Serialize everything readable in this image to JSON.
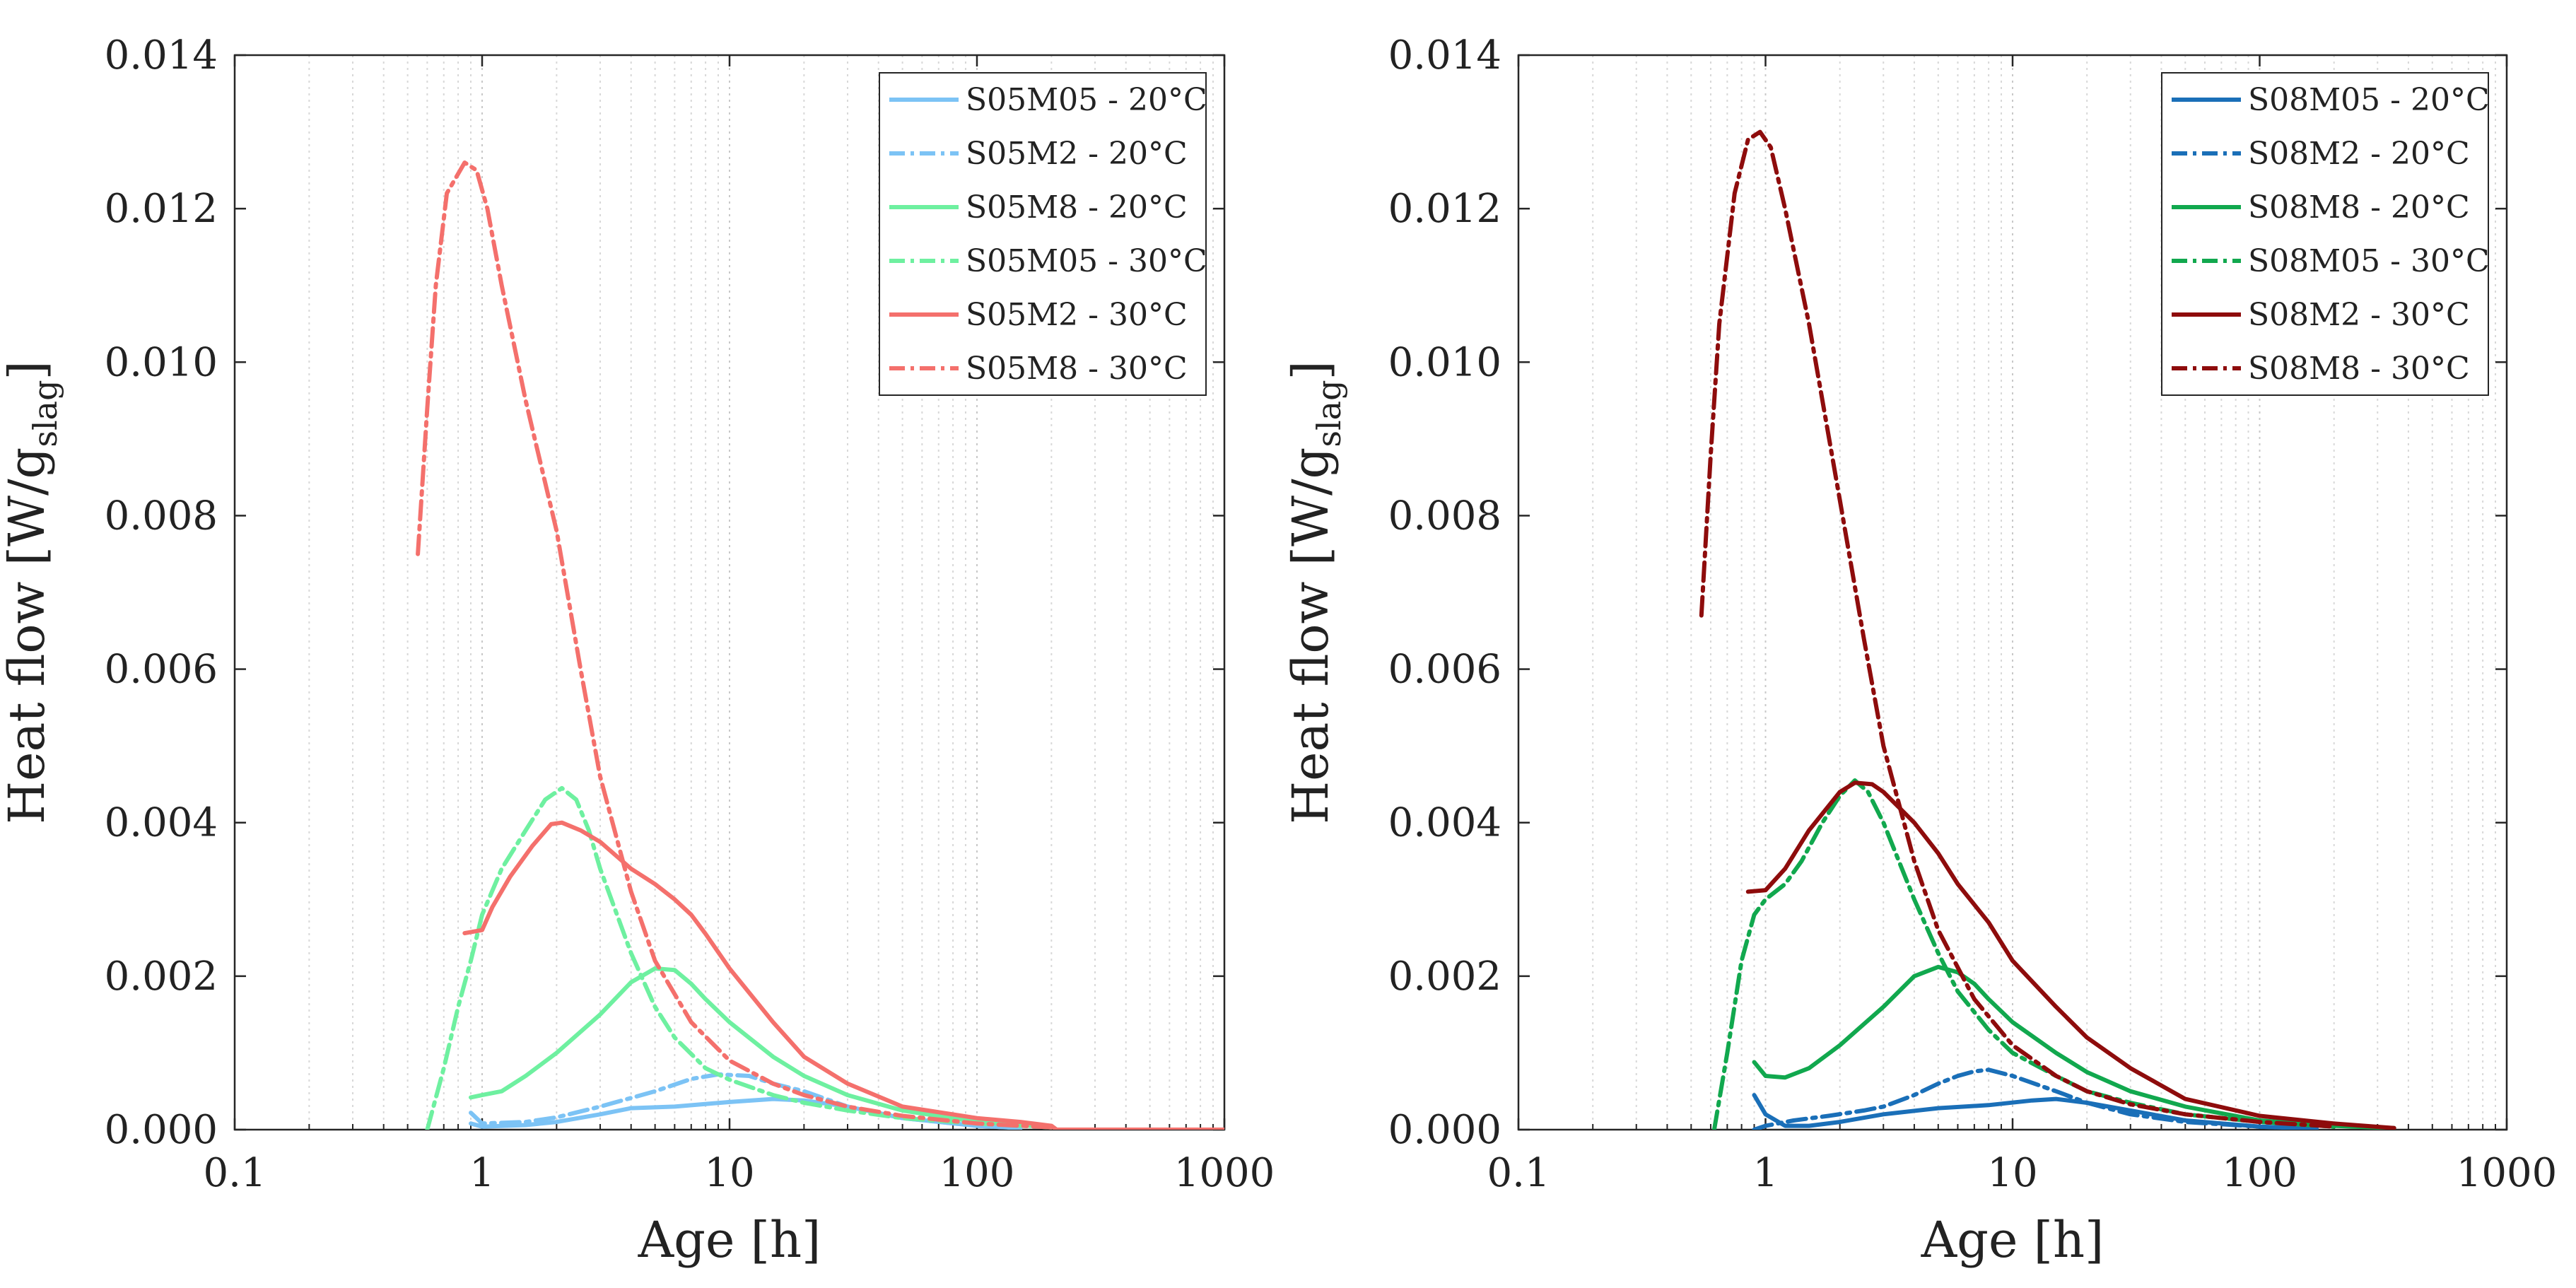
{
  "chart_data": [
    {
      "type": "line",
      "title": "",
      "xlabel": "Age [h]",
      "ylabel": {
        "main": "Heat flow [W/g",
        "sub": "slag",
        "end": "]"
      },
      "xscale": "log",
      "xlim": [
        0.1,
        1000
      ],
      "ylim": [
        0,
        0.014
      ],
      "grid": "x-minor-dotted",
      "legend_position": "top-right",
      "x_ticks": [
        0.1,
        1,
        10,
        100,
        1000
      ],
      "x_tick_labels": [
        "0.1",
        "1",
        "10",
        "100",
        "1000"
      ],
      "y_ticks": [
        0,
        0.002,
        0.004,
        0.006,
        0.008,
        0.01,
        0.012,
        0.014
      ],
      "y_tick_labels": [
        "0.000",
        "0.002",
        "0.004",
        "0.006",
        "0.008",
        "0.010",
        "0.012",
        "0.014"
      ],
      "series": [
        {
          "name": "S05M05 - 20°C",
          "color": "#7cc3f5",
          "dash": "solid",
          "points": [
            [
              0.9,
              8e-05
            ],
            [
              1,
              4e-05
            ],
            [
              1.5,
              6e-05
            ],
            [
              2,
              0.0001
            ],
            [
              3,
              0.0002
            ],
            [
              4,
              0.00028
            ],
            [
              6,
              0.0003
            ],
            [
              10,
              0.00036
            ],
            [
              15,
              0.0004
            ],
            [
              20,
              0.00038
            ],
            [
              30,
              0.0003
            ],
            [
              50,
              0.00015
            ],
            [
              100,
              5e-05
            ],
            [
              150,
              2e-05
            ]
          ]
        },
        {
          "name": "S05M2 - 20°C",
          "color": "#7cc3f5",
          "dash": "dashdot",
          "points": [
            [
              0.9,
              0.00022
            ],
            [
              1,
              8e-05
            ],
            [
              1.5,
              0.0001
            ],
            [
              2,
              0.00016
            ],
            [
              3,
              0.0003
            ],
            [
              5,
              0.0005
            ],
            [
              7,
              0.00066
            ],
            [
              9,
              0.00072
            ],
            [
              12,
              0.0007
            ],
            [
              15,
              0.0006
            ],
            [
              20,
              0.0005
            ],
            [
              30,
              0.0003
            ],
            [
              50,
              0.00015
            ],
            [
              100,
              5e-05
            ],
            [
              150,
              2e-05
            ]
          ]
        },
        {
          "name": "S05M8 - 20°C",
          "color": "#6ef0a0",
          "dash": "solid",
          "points": [
            [
              0.9,
              0.00042
            ],
            [
              1,
              0.00045
            ],
            [
              1.2,
              0.0005
            ],
            [
              1.5,
              0.0007
            ],
            [
              2,
              0.001
            ],
            [
              3,
              0.0015
            ],
            [
              4,
              0.00192
            ],
            [
              5,
              0.0021
            ],
            [
              6,
              0.00208
            ],
            [
              7,
              0.0019
            ],
            [
              8,
              0.0017
            ],
            [
              10,
              0.0014
            ],
            [
              15,
              0.00095
            ],
            [
              20,
              0.0007
            ],
            [
              30,
              0.00045
            ],
            [
              50,
              0.00025
            ],
            [
              100,
              0.0001
            ],
            [
              200,
              3e-05
            ]
          ]
        },
        {
          "name": "S05M05 - 30°C",
          "color": "#6ef0a0",
          "dash": "dashdot",
          "points": [
            [
              0.6,
              0
            ],
            [
              0.7,
              0.0008
            ],
            [
              0.8,
              0.0016
            ],
            [
              0.9,
              0.0022
            ],
            [
              1,
              0.0028
            ],
            [
              1.2,
              0.0034
            ],
            [
              1.5,
              0.0039
            ],
            [
              1.8,
              0.0043
            ],
            [
              2.1,
              0.00445
            ],
            [
              2.4,
              0.0043
            ],
            [
              2.7,
              0.0039
            ],
            [
              3,
              0.0034
            ],
            [
              4,
              0.0023
            ],
            [
              5,
              0.0016
            ],
            [
              6,
              0.0012
            ],
            [
              8,
              0.0008
            ],
            [
              10,
              0.00065
            ],
            [
              15,
              0.00045
            ],
            [
              20,
              0.00035
            ],
            [
              30,
              0.00025
            ],
            [
              50,
              0.00015
            ],
            [
              100,
              8e-05
            ],
            [
              200,
              3e-05
            ]
          ]
        },
        {
          "name": "S05M2 - 30°C",
          "color": "#f4706c",
          "dash": "solid",
          "points": [
            [
              0.85,
              0.00256
            ],
            [
              1,
              0.0026
            ],
            [
              1.1,
              0.0029
            ],
            [
              1.3,
              0.0033
            ],
            [
              1.6,
              0.0037
            ],
            [
              1.9,
              0.00398
            ],
            [
              2.1,
              0.004
            ],
            [
              2.5,
              0.0039
            ],
            [
              3,
              0.00375
            ],
            [
              4,
              0.0034
            ],
            [
              5,
              0.0032
            ],
            [
              6,
              0.003
            ],
            [
              7,
              0.0028
            ],
            [
              8,
              0.00255
            ],
            [
              10,
              0.0021
            ],
            [
              15,
              0.0014
            ],
            [
              20,
              0.00095
            ],
            [
              30,
              0.0006
            ],
            [
              50,
              0.0003
            ],
            [
              100,
              0.00015
            ],
            [
              150,
              0.0001
            ],
            [
              200,
              5e-05
            ],
            [
              210,
              0
            ],
            [
              1000,
              0
            ]
          ]
        },
        {
          "name": "S05M8 - 30°C",
          "color": "#f4706c",
          "dash": "dashdot",
          "points": [
            [
              0.55,
              0.0075
            ],
            [
              0.6,
              0.0094
            ],
            [
              0.65,
              0.011
            ],
            [
              0.72,
              0.0122
            ],
            [
              0.85,
              0.0126
            ],
            [
              0.95,
              0.0125
            ],
            [
              1.05,
              0.012
            ],
            [
              1.2,
              0.011
            ],
            [
              1.5,
              0.0095
            ],
            [
              2,
              0.0078
            ],
            [
              2.5,
              0.006
            ],
            [
              3,
              0.0046
            ],
            [
              4,
              0.0031
            ],
            [
              5,
              0.0022
            ],
            [
              7,
              0.0014
            ],
            [
              10,
              0.0009
            ],
            [
              15,
              0.0006
            ],
            [
              20,
              0.00045
            ],
            [
              30,
              0.0003
            ],
            [
              50,
              0.00018
            ],
            [
              100,
              8e-05
            ],
            [
              200,
              3e-05
            ]
          ]
        }
      ]
    },
    {
      "type": "line",
      "title": "",
      "xlabel": "Age [h]",
      "ylabel": {
        "main": "Heat flow [W/g",
        "sub": "slag",
        "end": "]"
      },
      "xscale": "log",
      "xlim": [
        0.1,
        1000
      ],
      "ylim": [
        0,
        0.014
      ],
      "grid": "x-minor-dotted",
      "legend_position": "top-right",
      "x_ticks": [
        0.1,
        1,
        10,
        100,
        1000
      ],
      "x_tick_labels": [
        "0.1",
        "1",
        "10",
        "100",
        "1000"
      ],
      "y_ticks": [
        0,
        0.002,
        0.004,
        0.006,
        0.008,
        0.01,
        0.012,
        0.014
      ],
      "y_tick_labels": [
        "0.000",
        "0.002",
        "0.004",
        "0.006",
        "0.008",
        "0.010",
        "0.012",
        "0.014"
      ],
      "series": [
        {
          "name": "S08M05 - 20°C",
          "color": "#1a6fb8",
          "dash": "solid",
          "points": [
            [
              0.9,
              0.00045
            ],
            [
              1,
              0.0002
            ],
            [
              1.2,
              5e-05
            ],
            [
              1.5,
              5e-05
            ],
            [
              2,
              0.0001
            ],
            [
              3,
              0.0002
            ],
            [
              5,
              0.00028
            ],
            [
              8,
              0.00032
            ],
            [
              12,
              0.00038
            ],
            [
              15,
              0.0004
            ],
            [
              20,
              0.00035
            ],
            [
              30,
              0.00025
            ],
            [
              50,
              0.00012
            ],
            [
              100,
              4e-05
            ],
            [
              170,
              1e-05
            ]
          ]
        },
        {
          "name": "S08M2 - 20°C",
          "color": "#1a6fb8",
          "dash": "dashdot",
          "points": [
            [
              0.9,
              0
            ],
            [
              1,
              5e-05
            ],
            [
              1.3,
              0.00012
            ],
            [
              1.8,
              0.00018
            ],
            [
              2.5,
              0.00025
            ],
            [
              3,
              0.0003
            ],
            [
              4,
              0.00045
            ],
            [
              5,
              0.0006
            ],
            [
              6,
              0.0007
            ],
            [
              7,
              0.00076
            ],
            [
              8,
              0.00078
            ],
            [
              10,
              0.0007
            ],
            [
              15,
              0.0005
            ],
            [
              20,
              0.00035
            ],
            [
              30,
              0.0002
            ],
            [
              50,
              0.0001
            ],
            [
              100,
              4e-05
            ],
            [
              170,
              1e-05
            ]
          ]
        },
        {
          "name": "S08M8 - 20°C",
          "color": "#11a84e",
          "dash": "solid",
          "points": [
            [
              0.9,
              0.00088
            ],
            [
              1,
              0.0007
            ],
            [
              1.2,
              0.00068
            ],
            [
              1.5,
              0.0008
            ],
            [
              2,
              0.0011
            ],
            [
              3,
              0.0016
            ],
            [
              4,
              0.002
            ],
            [
              5,
              0.00212
            ],
            [
              6,
              0.00205
            ],
            [
              7,
              0.0019
            ],
            [
              8,
              0.0017
            ],
            [
              10,
              0.0014
            ],
            [
              15,
              0.001
            ],
            [
              20,
              0.00075
            ],
            [
              30,
              0.0005
            ],
            [
              50,
              0.0003
            ],
            [
              100,
              0.00012
            ],
            [
              200,
              5e-05
            ],
            [
              350,
              2e-05
            ]
          ]
        },
        {
          "name": "S08M05 - 30°C",
          "color": "#11a84e",
          "dash": "dashdot",
          "points": [
            [
              0.62,
              0
            ],
            [
              0.7,
              0.001
            ],
            [
              0.8,
              0.0022
            ],
            [
              0.9,
              0.0028
            ],
            [
              1,
              0.003
            ],
            [
              1.2,
              0.0032
            ],
            [
              1.4,
              0.0035
            ],
            [
              1.7,
              0.004
            ],
            [
              2,
              0.00435
            ],
            [
              2.3,
              0.00455
            ],
            [
              2.6,
              0.0044
            ],
            [
              3,
              0.004
            ],
            [
              4,
              0.003
            ],
            [
              5,
              0.0023
            ],
            [
              6,
              0.0018
            ],
            [
              8,
              0.0013
            ],
            [
              10,
              0.001
            ],
            [
              15,
              0.0007
            ],
            [
              20,
              0.0005
            ],
            [
              30,
              0.00035
            ],
            [
              50,
              0.0002
            ],
            [
              100,
              0.0001
            ],
            [
              200,
              4e-05
            ]
          ]
        },
        {
          "name": "S08M2 - 30°C",
          "color": "#8e0c0c",
          "dash": "solid",
          "points": [
            [
              0.85,
              0.0031
            ],
            [
              1,
              0.00312
            ],
            [
              1.2,
              0.0034
            ],
            [
              1.5,
              0.0039
            ],
            [
              2,
              0.0044
            ],
            [
              2.3,
              0.00452
            ],
            [
              2.7,
              0.0045
            ],
            [
              3,
              0.0044
            ],
            [
              4,
              0.004
            ],
            [
              5,
              0.0036
            ],
            [
              6,
              0.0032
            ],
            [
              8,
              0.0027
            ],
            [
              10,
              0.0022
            ],
            [
              15,
              0.0016
            ],
            [
              20,
              0.0012
            ],
            [
              30,
              0.0008
            ],
            [
              50,
              0.0004
            ],
            [
              100,
              0.00018
            ],
            [
              200,
              8e-05
            ],
            [
              350,
              2e-05
            ]
          ]
        },
        {
          "name": "S08M8 - 30°C",
          "color": "#8e0c0c",
          "dash": "dashdot",
          "points": [
            [
              0.55,
              0.0067
            ],
            [
              0.6,
              0.0088
            ],
            [
              0.65,
              0.0105
            ],
            [
              0.75,
              0.0122
            ],
            [
              0.85,
              0.0129
            ],
            [
              0.95,
              0.013
            ],
            [
              1.05,
              0.0128
            ],
            [
              1.2,
              0.012
            ],
            [
              1.5,
              0.0105
            ],
            [
              2,
              0.0082
            ],
            [
              2.5,
              0.0064
            ],
            [
              3,
              0.005
            ],
            [
              4,
              0.0035
            ],
            [
              5,
              0.0026
            ],
            [
              7,
              0.0017
            ],
            [
              10,
              0.0011
            ],
            [
              15,
              0.0007
            ],
            [
              20,
              0.0005
            ],
            [
              30,
              0.00033
            ],
            [
              50,
              0.0002
            ],
            [
              100,
              0.0001
            ],
            [
              200,
              4e-05
            ]
          ]
        }
      ]
    }
  ]
}
